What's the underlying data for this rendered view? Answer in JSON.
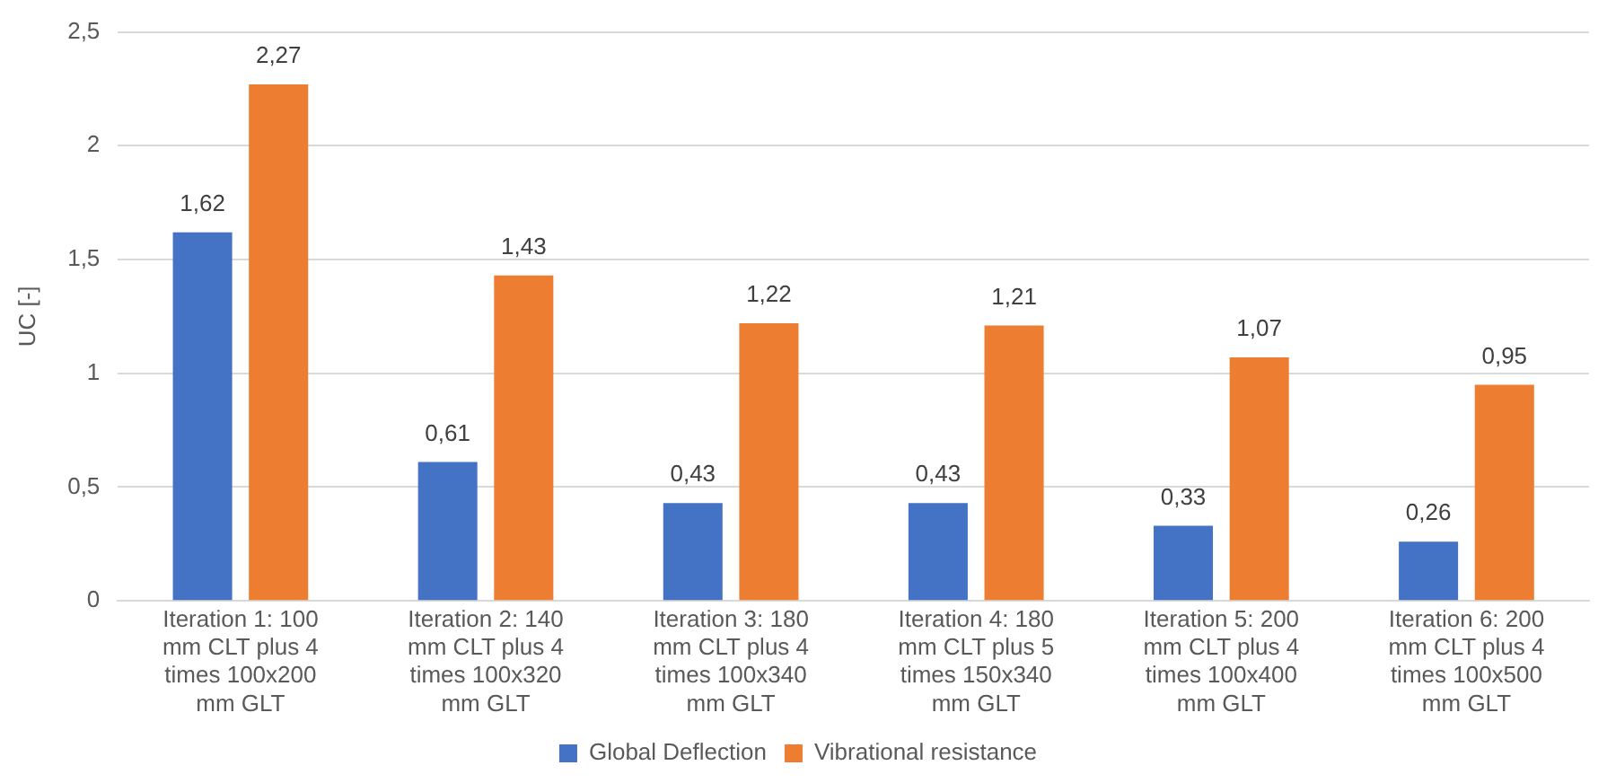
{
  "chart_data": {
    "type": "bar",
    "ylabel": "UC [-]",
    "categories": [
      "Iteration 1: 100 mm CLT plus 4 times 100x200 mm GLT",
      "Iteration 2: 140 mm CLT plus 4 times 100x320 mm GLT",
      "Iteration 3: 180 mm CLT plus 4 times 100x340 mm GLT",
      "Iteration 4: 180 mm CLT plus 5 times 150x340 mm GLT",
      "Iteration 5: 200 mm CLT plus 4 times 100x400 mm GLT",
      "Iteration 6: 200 mm CLT plus 4 times 100x500 mm GLT"
    ],
    "series": [
      {
        "name": "Global Deflection",
        "color": "#4472c4",
        "values": [
          1.62,
          0.61,
          0.43,
          0.43,
          0.33,
          0.26
        ],
        "value_labels": [
          "1,62",
          "0,61",
          "0,43",
          "0,43",
          "0,33",
          "0,26"
        ]
      },
      {
        "name": "Vibrational resistance",
        "color": "#ed7d31",
        "values": [
          2.27,
          1.43,
          1.22,
          1.21,
          1.07,
          0.95
        ],
        "value_labels": [
          "2,27",
          "1,43",
          "1,22",
          "1,21",
          "1,07",
          "0,95"
        ]
      }
    ],
    "ylim": [
      0,
      2.5
    ],
    "yticks": [
      {
        "value": 0,
        "label": "0"
      },
      {
        "value": 0.5,
        "label": "0,5"
      },
      {
        "value": 1,
        "label": "1"
      },
      {
        "value": 1.5,
        "label": "1,5"
      },
      {
        "value": 2,
        "label": "2"
      },
      {
        "value": 2.5,
        "label": "2,5"
      }
    ],
    "grid": "y",
    "legend": "bottom"
  }
}
